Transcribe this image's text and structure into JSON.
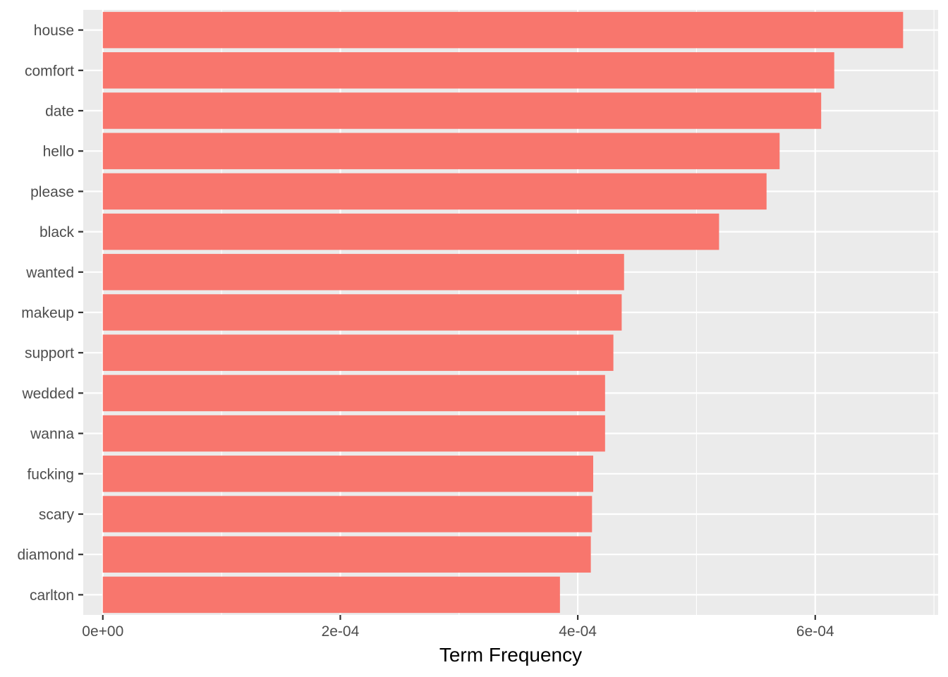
{
  "chart_data": {
    "type": "bar",
    "orientation": "horizontal",
    "title": "",
    "xlabel": "Term Frequency",
    "ylabel": "",
    "xlim": [
      -1.65e-05,
      0.0007035
    ],
    "x_ticks": [
      {
        "value": 0.0,
        "label": "0e+00"
      },
      {
        "value": 0.0002,
        "label": "2e-04"
      },
      {
        "value": 0.0004,
        "label": "4e-04"
      },
      {
        "value": 0.0006,
        "label": "6e-04"
      }
    ],
    "x_minor_ticks": [
      0.0001,
      0.0003,
      0.0005,
      0.0007
    ],
    "grid": true,
    "legend": "none",
    "categories": [
      "house",
      "comfort",
      "date",
      "hello",
      "please",
      "black",
      "wanted",
      "makeup",
      "support",
      "wedded",
      "wanna",
      "fucking",
      "scary",
      "diamond",
      "carlton"
    ],
    "values": [
      0.000674,
      0.000616,
      0.000605,
      0.00057,
      0.000559,
      0.000519,
      0.000439,
      0.000437,
      0.00043,
      0.000423,
      0.000423,
      0.000413,
      0.000412,
      0.000411,
      0.000385
    ],
    "colors": {
      "bar": "#F8766D",
      "panel": "#EBEBEB",
      "grid": "#FFFFFF",
      "tick_text": "#4D4D4D",
      "tick_mark": "#333333"
    }
  }
}
